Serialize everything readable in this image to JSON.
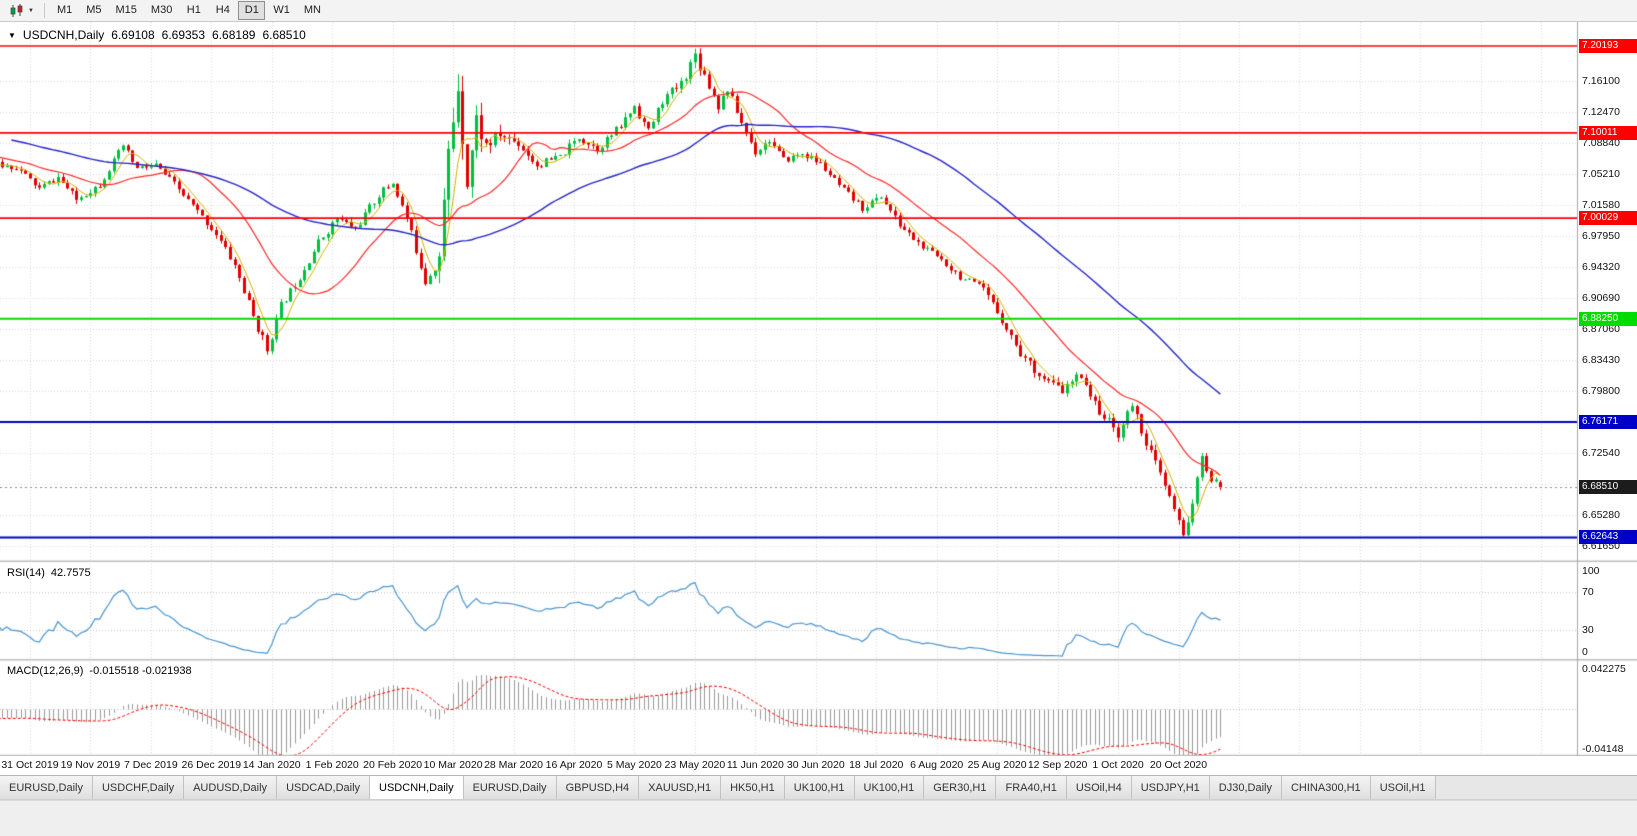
{
  "toolbar": {
    "chart_icon": "candlestick-chart-icon",
    "dropdown_caret": "▼",
    "timeframes": [
      {
        "label": "M1"
      },
      {
        "label": "M5"
      },
      {
        "label": "M15"
      },
      {
        "label": "M30"
      },
      {
        "label": "H1"
      },
      {
        "label": "H4"
      },
      {
        "label": "D1",
        "active": true
      },
      {
        "label": "W1"
      },
      {
        "label": "MN"
      }
    ]
  },
  "chart": {
    "title_arrow": "▼",
    "symbol_title": "USDCNH,Daily",
    "ohlc": {
      "open": "6.69108",
      "high": "6.69353",
      "low": "6.68189",
      "close": "6.68510"
    },
    "price_axis": {
      "min": 6.6,
      "max": 7.23,
      "labels": [
        {
          "price": 7.161,
          "text": "7.16100"
        },
        {
          "price": 7.1247,
          "text": "7.12470"
        },
        {
          "price": 7.0884,
          "text": "7.08840"
        },
        {
          "price": 7.0521,
          "text": "7.05210"
        },
        {
          "price": 7.0158,
          "text": "7.01580"
        },
        {
          "price": 6.9795,
          "text": "6.97950"
        },
        {
          "price": 6.9432,
          "text": "6.94320"
        },
        {
          "price": 6.9069,
          "text": "6.90690"
        },
        {
          "price": 6.8706,
          "text": "6.87060"
        },
        {
          "price": 6.8343,
          "text": "6.83430"
        },
        {
          "price": 6.798,
          "text": "6.79800"
        },
        {
          "price": 6.7617,
          "text": "6.76170"
        },
        {
          "price": 6.7254,
          "text": "6.72540"
        },
        {
          "price": 6.6891,
          "text": "6.68910"
        },
        {
          "price": 6.6528,
          "text": "6.65280"
        },
        {
          "price": 6.6165,
          "text": "6.61650"
        }
      ]
    },
    "hlines": [
      {
        "price": 7.20193,
        "label": "7.20193",
        "color": "#FF0000",
        "width": 1.6
      },
      {
        "price": 7.10011,
        "label": "7.10011",
        "color": "#FF0000",
        "width": 1.6
      },
      {
        "price": 7.00029,
        "label": "7.00029",
        "color": "#FF0000",
        "width": 1.6
      },
      {
        "price": 6.8825,
        "label": "6.88250",
        "color": "#00DC00",
        "width": 2.2
      },
      {
        "price": 6.76171,
        "label": "6.76171",
        "color": "#0000C8",
        "width": 2
      },
      {
        "price": 6.62643,
        "label": "6.62643",
        "color": "#0000C8",
        "width": 2
      }
    ],
    "current_price": {
      "price": 6.6851,
      "label": "6.68510",
      "line_color": "#909090",
      "tag_color": "#1C1C1C"
    }
  },
  "rsi": {
    "name": "RSI(14)",
    "value": "42.7575",
    "line_color": "#4A96D2",
    "levels": [
      {
        "v": 100,
        "text": "100",
        "line": false
      },
      {
        "v": 70,
        "text": "70",
        "line": true
      },
      {
        "v": 30,
        "text": "30",
        "line": true
      },
      {
        "v": 0,
        "text": "0",
        "line": false
      }
    ]
  },
  "macd": {
    "name": "MACD(12,26,9)",
    "values": "-0.015518 -0.021938",
    "hist_color": "#9A9A9A",
    "signal_color": "#FF0000",
    "axis_max": {
      "v": 0.042275,
      "text": "0.042275"
    },
    "axis_min": {
      "v": -0.04148,
      "text": "-0.04148"
    }
  },
  "tabs": [
    {
      "label": "EURUSD,Daily"
    },
    {
      "label": "USDCHF,Daily"
    },
    {
      "label": "AUDUSD,Daily"
    },
    {
      "label": "USDCAD,Daily"
    },
    {
      "label": "USDCNH,Daily",
      "active": true
    },
    {
      "label": "EURUSD,Daily"
    },
    {
      "label": "GBPUSD,H4"
    },
    {
      "label": "XAUUSD,H1"
    },
    {
      "label": "HK50,H1"
    },
    {
      "label": "UK100,H1"
    },
    {
      "label": "UK100,H1"
    },
    {
      "label": "GER30,H1"
    },
    {
      "label": "FRA40,H1"
    },
    {
      "label": "USOil,H4"
    },
    {
      "label": "USDJPY,H1"
    },
    {
      "label": "DJ30,Daily"
    },
    {
      "label": "CHINA300,H1"
    },
    {
      "label": "USOil,H1"
    }
  ],
  "chart_data": {
    "type": "candlestick",
    "symbol": "USDCNH",
    "period": "Daily",
    "last_ohlc": {
      "o": 6.69108,
      "h": 6.69353,
      "l": 6.68189,
      "c": 6.6851
    },
    "y_visible_range": [
      6.6,
      7.23
    ],
    "support_resistance_levels": [
      7.20193,
      7.10011,
      7.00029,
      6.8825,
      6.76171,
      6.62643
    ],
    "date_tick_labels": [
      "31 Oct 2019",
      "19 Nov 2019",
      "7 Dec 2019",
      "26 Dec 2019",
      "14 Jan 2020",
      "1 Feb 2020",
      "20 Feb 2020",
      "10 Mar 2020",
      "28 Mar 2020",
      "16 Apr 2020",
      "5 May 2020",
      "23 May 2020",
      "11 Jun 2020",
      "30 Jun 2020",
      "18 Jul 2020",
      "6 Aug 2020",
      "25 Aug 2020",
      "12 Sep 2020",
      "1 Oct 2020",
      "20 Oct 2020"
    ],
    "bars_total": 320,
    "lead_bars": 60,
    "seed": 11,
    "up_color": "#00C040",
    "down_color": "#E00000",
    "close_anchors": [
      [
        0,
        7.13
      ],
      [
        20,
        7.1
      ],
      [
        40,
        7.08
      ],
      [
        52,
        7.065
      ],
      [
        60,
        7.06
      ],
      [
        65,
        7.035
      ],
      [
        69,
        7.048
      ],
      [
        73,
        7.022
      ],
      [
        78,
        7.04
      ],
      [
        83,
        7.085
      ],
      [
        86,
        7.058
      ],
      [
        90,
        7.062
      ],
      [
        94,
        7.04
      ],
      [
        99,
        7.008
      ],
      [
        103,
        6.982
      ],
      [
        107,
        6.945
      ],
      [
        111,
        6.885
      ],
      [
        114,
        6.846
      ],
      [
        117,
        6.898
      ],
      [
        121,
        6.932
      ],
      [
        125,
        6.972
      ],
      [
        129,
        7.0
      ],
      [
        133,
        6.988
      ],
      [
        138,
        7.028
      ],
      [
        141,
        7.042
      ],
      [
        144,
        7.0
      ],
      [
        148,
        6.928
      ],
      [
        151,
        6.955
      ],
      [
        153,
        7.075
      ],
      [
        155,
        7.158
      ],
      [
        157,
        7.045
      ],
      [
        159,
        7.115
      ],
      [
        161,
        7.085
      ],
      [
        164,
        7.098
      ],
      [
        168,
        7.088
      ],
      [
        172,
        7.062
      ],
      [
        177,
        7.072
      ],
      [
        181,
        7.095
      ],
      [
        185,
        7.082
      ],
      [
        190,
        7.108
      ],
      [
        193,
        7.132
      ],
      [
        196,
        7.102
      ],
      [
        199,
        7.138
      ],
      [
        203,
        7.158
      ],
      [
        206,
        7.192
      ],
      [
        208,
        7.168
      ],
      [
        211,
        7.132
      ],
      [
        213,
        7.152
      ],
      [
        216,
        7.112
      ],
      [
        219,
        7.078
      ],
      [
        222,
        7.092
      ],
      [
        225,
        7.068
      ],
      [
        229,
        7.076
      ],
      [
        233,
        7.064
      ],
      [
        237,
        7.038
      ],
      [
        242,
        7.012
      ],
      [
        246,
        7.026
      ],
      [
        250,
        6.992
      ],
      [
        255,
        6.966
      ],
      [
        259,
        6.952
      ],
      [
        263,
        6.932
      ],
      [
        268,
        6.916
      ],
      [
        272,
        6.882
      ],
      [
        276,
        6.842
      ],
      [
        281,
        6.812
      ],
      [
        285,
        6.798
      ],
      [
        289,
        6.818
      ],
      [
        292,
        6.782
      ],
      [
        294,
        6.768
      ],
      [
        297,
        6.748
      ],
      [
        300,
        6.782
      ],
      [
        303,
        6.738
      ],
      [
        306,
        6.7
      ],
      [
        309,
        6.658
      ],
      [
        311,
        6.628
      ],
      [
        313,
        6.668
      ],
      [
        315,
        6.718
      ],
      [
        317,
        6.695
      ],
      [
        319,
        6.6851
      ]
    ],
    "volatility_anchors": [
      [
        0,
        0.008
      ],
      [
        100,
        0.009
      ],
      [
        110,
        0.013
      ],
      [
        118,
        0.01
      ],
      [
        145,
        0.011
      ],
      [
        150,
        0.02
      ],
      [
        153,
        0.042
      ],
      [
        158,
        0.035
      ],
      [
        163,
        0.018
      ],
      [
        170,
        0.011
      ],
      [
        188,
        0.01
      ],
      [
        200,
        0.012
      ],
      [
        206,
        0.016
      ],
      [
        210,
        0.012
      ],
      [
        230,
        0.008
      ],
      [
        260,
        0.009
      ],
      [
        275,
        0.011
      ],
      [
        295,
        0.011
      ],
      [
        308,
        0.013
      ],
      [
        312,
        0.012
      ],
      [
        319,
        0.009
      ]
    ],
    "moving_averages": [
      {
        "period": 5,
        "color": "#D6B400",
        "width": 1
      },
      {
        "period": 20,
        "color": "#FF2A2A",
        "width": 1.2
      },
      {
        "period": 60,
        "color": "#2626C8",
        "width": 1.4
      }
    ],
    "indicators": {
      "rsi_period": 14,
      "rsi_display": "42.7575",
      "macd_params": [
        12,
        26,
        9
      ],
      "macd_display": [
        "-0.015518",
        "-0.021938"
      ]
    }
  }
}
